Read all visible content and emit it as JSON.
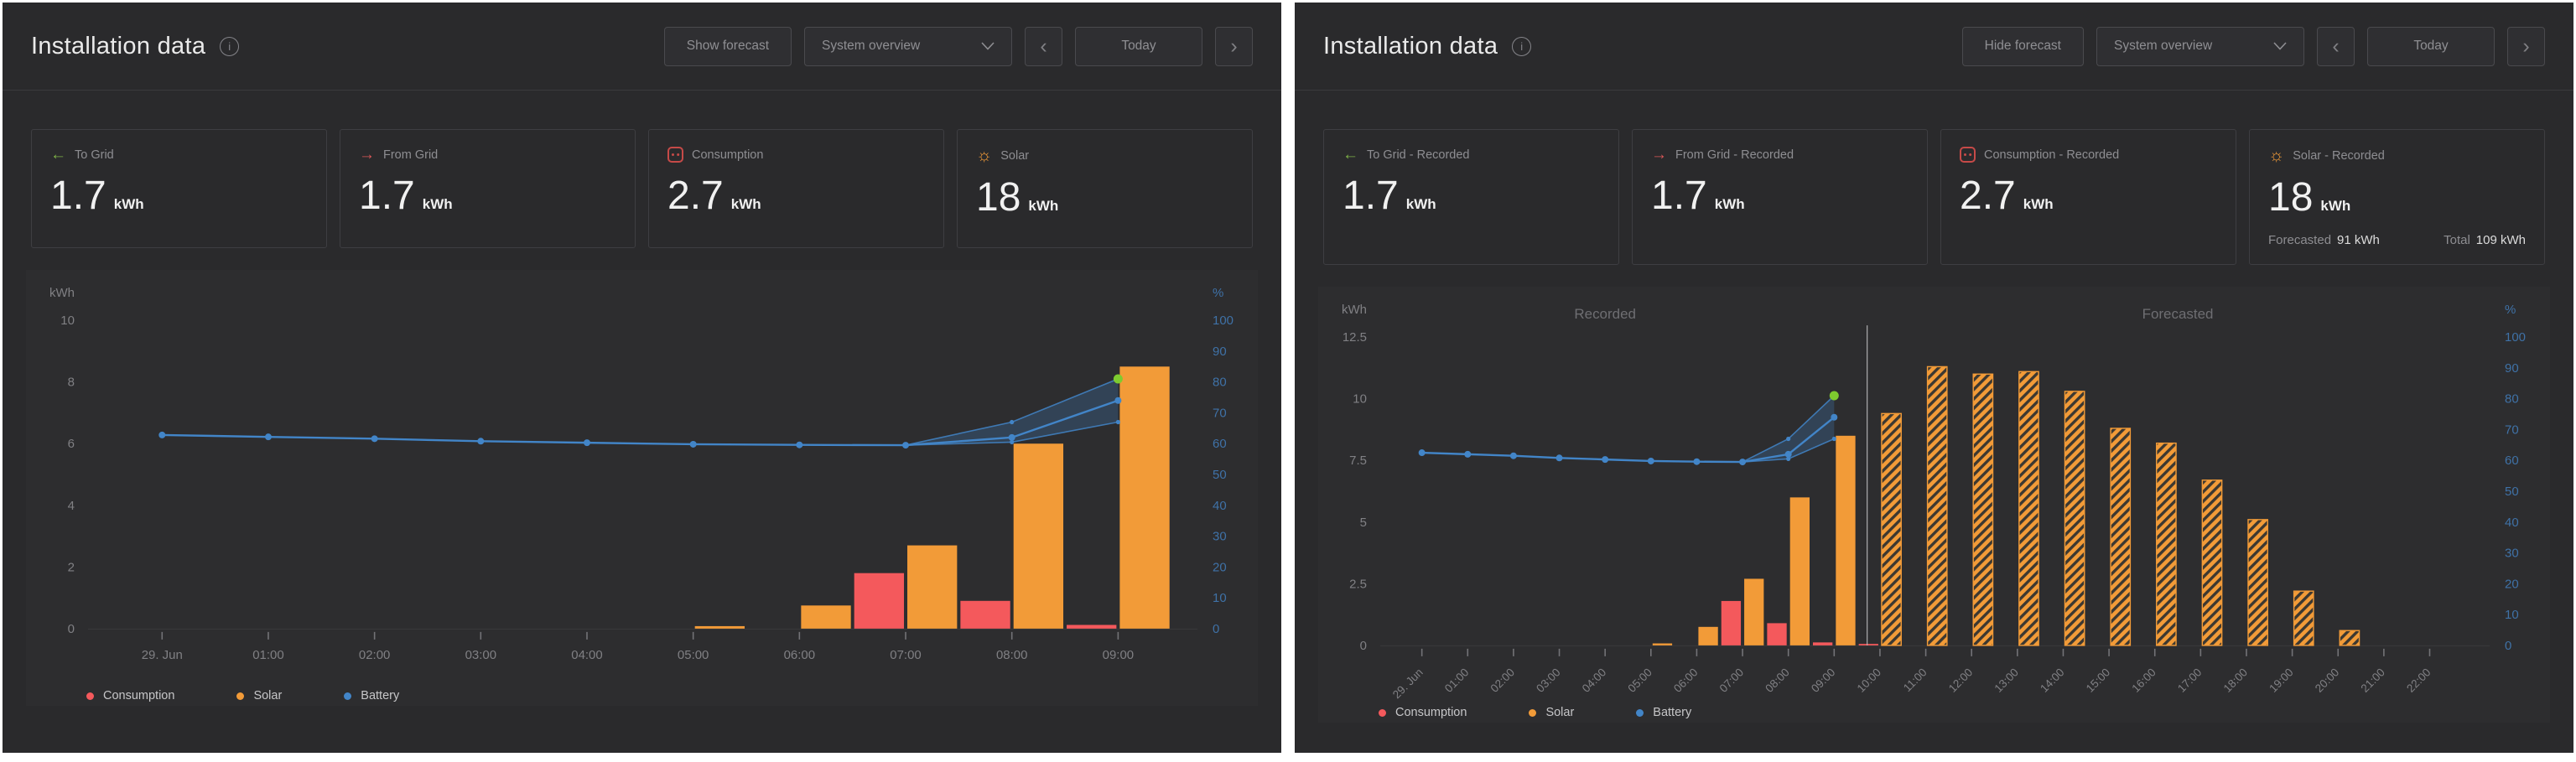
{
  "colors": {
    "solar": "#f29b38",
    "consumption": "#f4595c",
    "battery": "#4285c8",
    "green": "#7ecb2f",
    "to_grid_icon_green": "#7fb347",
    "from_grid_icon_red": "#d95757",
    "socket_icon_red": "#c64a48",
    "right_axis_blue": "#3f72a8"
  },
  "panels": [
    {
      "header": {
        "title": "Installation data",
        "forecast_button": "Show forecast",
        "view_select": "System overview",
        "today_button": "Today"
      },
      "cards": [
        {
          "icon": "arrow-left-icon",
          "label": "To Grid",
          "value": "1.7",
          "unit": "kWh"
        },
        {
          "icon": "arrow-right-icon",
          "label": "From Grid",
          "value": "1.7",
          "unit": "kWh"
        },
        {
          "icon": "socket-icon",
          "label": "Consumption",
          "value": "2.7",
          "unit": "kWh"
        },
        {
          "icon": "sun-icon",
          "label": "Solar",
          "value": "18",
          "unit": "kWh"
        }
      ],
      "legend": {
        "consumption": "Consumption",
        "solar": "Solar",
        "battery": "Battery"
      }
    },
    {
      "header": {
        "title": "Installation data",
        "forecast_button": "Hide forecast",
        "view_select": "System overview",
        "today_button": "Today"
      },
      "cards": [
        {
          "icon": "arrow-left-icon",
          "label": "To Grid - Recorded",
          "value": "1.7",
          "unit": "kWh"
        },
        {
          "icon": "arrow-right-icon",
          "label": "From Grid - Recorded",
          "value": "1.7",
          "unit": "kWh"
        },
        {
          "icon": "socket-icon",
          "label": "Consumption - Recorded",
          "value": "2.7",
          "unit": "kWh"
        },
        {
          "icon": "sun-icon",
          "label": "Solar - Recorded",
          "value": "18",
          "unit": "kWh",
          "footer": {
            "forecast_label": "Forecasted",
            "forecast_value": "91 kWh",
            "total_label": "Total",
            "total_value": "109 kWh"
          }
        }
      ],
      "legend": {
        "consumption": "Consumption",
        "solar": "Solar",
        "battery": "Battery"
      }
    }
  ],
  "chart_data": [
    {
      "type": "bar+line",
      "title": "",
      "y_left": {
        "label": "kWh",
        "ticks": [
          0,
          2,
          4,
          6,
          8,
          10
        ],
        "max": 10
      },
      "y_right": {
        "label": "%",
        "ticks": [
          0,
          10,
          20,
          30,
          40,
          50,
          60,
          70,
          80,
          90,
          100
        ],
        "max": 100
      },
      "x": {
        "min": -0.65,
        "max": 9.7,
        "rotate": false,
        "ticks": [
          {
            "t": 0,
            "label": "29. Jun"
          },
          {
            "t": 1,
            "label": "01:00"
          },
          {
            "t": 2,
            "label": "02:00"
          },
          {
            "t": 3,
            "label": "03:00"
          },
          {
            "t": 4,
            "label": "04:00"
          },
          {
            "t": 5,
            "label": "05:00"
          },
          {
            "t": 6,
            "label": "06:00"
          },
          {
            "t": 7,
            "label": "07:00"
          },
          {
            "t": 8,
            "label": "08:00"
          },
          {
            "t": 9,
            "label": "09:00"
          }
        ]
      },
      "slot_hours": 0.5,
      "series": {
        "solar_recorded": [
          {
            "t": 5,
            "v": 0.08
          },
          {
            "t": 6,
            "v": 0.75
          },
          {
            "t": 7,
            "v": 2.7
          },
          {
            "t": 8,
            "v": 6.0
          },
          {
            "t": 9,
            "v": 8.5
          }
        ],
        "consumption_recorded": [
          {
            "t": 6.5,
            "v": 1.8
          },
          {
            "t": 7.5,
            "v": 0.9
          },
          {
            "t": 8.5,
            "v": 0.12
          }
        ],
        "solar_forecast": [],
        "battery_pct": [
          {
            "t": 0,
            "v": 62.8
          },
          {
            "t": 1,
            "v": 62.2
          },
          {
            "t": 2,
            "v": 61.6
          },
          {
            "t": 3,
            "v": 60.8
          },
          {
            "t": 4,
            "v": 60.3
          },
          {
            "t": 5,
            "v": 59.8
          },
          {
            "t": 6,
            "v": 59.6
          },
          {
            "t": 7,
            "v": 59.5
          },
          {
            "t": 8,
            "v": 62
          },
          {
            "t": 9,
            "v": 74
          }
        ],
        "battery_band_upper": [
          {
            "t": 7,
            "v": 59.5
          },
          {
            "t": 8,
            "v": 67
          },
          {
            "t": 9,
            "v": 81
          }
        ],
        "battery_band_lower": [
          {
            "t": 7,
            "v": 59.5
          },
          {
            "t": 8,
            "v": 60.5
          },
          {
            "t": 9,
            "v": 67
          }
        ],
        "battery_forecast_dot": {
          "t": 9,
          "v": 81
        }
      }
    },
    {
      "type": "bar+line",
      "title": "",
      "y_left": {
        "label": "kWh",
        "ticks": [
          0,
          2.5,
          5,
          7.5,
          10,
          12.5
        ],
        "max": 12.5
      },
      "y_right": {
        "label": "%",
        "ticks": [
          0,
          10,
          20,
          30,
          40,
          50,
          60,
          70,
          80,
          90,
          100
        ],
        "max": 100
      },
      "x": {
        "min": -0.8,
        "max": 23.2,
        "rotate": true,
        "ticks": [
          {
            "t": 0,
            "label": "29. Jun"
          },
          {
            "t": 1,
            "label": "01:00"
          },
          {
            "t": 2,
            "label": "02:00"
          },
          {
            "t": 3,
            "label": "03:00"
          },
          {
            "t": 4,
            "label": "04:00"
          },
          {
            "t": 5,
            "label": "05:00"
          },
          {
            "t": 6,
            "label": "06:00"
          },
          {
            "t": 7,
            "label": "07:00"
          },
          {
            "t": 8,
            "label": "08:00"
          },
          {
            "t": 9,
            "label": "09:00"
          },
          {
            "t": 10,
            "label": "10:00"
          },
          {
            "t": 11,
            "label": "11:00"
          },
          {
            "t": 12,
            "label": "12:00"
          },
          {
            "t": 13,
            "label": "13:00"
          },
          {
            "t": 14,
            "label": "14:00"
          },
          {
            "t": 15,
            "label": "15:00"
          },
          {
            "t": 16,
            "label": "16:00"
          },
          {
            "t": 17,
            "label": "17:00"
          },
          {
            "t": 18,
            "label": "18:00"
          },
          {
            "t": 19,
            "label": "19:00"
          },
          {
            "t": 20,
            "label": "20:00"
          },
          {
            "t": 21,
            "label": "21:00"
          },
          {
            "t": 22,
            "label": "22:00"
          }
        ]
      },
      "slot_hours": 0.5,
      "divider_t": 9.72,
      "region_labels": [
        {
          "t": 4,
          "label": "Recorded"
        },
        {
          "t": 16.5,
          "label": "Forecasted"
        }
      ],
      "series": {
        "solar_recorded": [
          {
            "t": 5,
            "v": 0.08
          },
          {
            "t": 6,
            "v": 0.75
          },
          {
            "t": 7,
            "v": 2.7
          },
          {
            "t": 8,
            "v": 6.0
          },
          {
            "t": 9,
            "v": 8.5
          }
        ],
        "consumption_recorded": [
          {
            "t": 6.5,
            "v": 1.8
          },
          {
            "t": 7.5,
            "v": 0.9
          },
          {
            "t": 8.5,
            "v": 0.12
          },
          {
            "t": 9.5,
            "v": 0.06
          }
        ],
        "solar_forecast": [
          {
            "t": 10,
            "v": 9.4
          },
          {
            "t": 11,
            "v": 11.3
          },
          {
            "t": 12,
            "v": 11.0
          },
          {
            "t": 13,
            "v": 11.1
          },
          {
            "t": 14,
            "v": 10.3
          },
          {
            "t": 15,
            "v": 8.8
          },
          {
            "t": 16,
            "v": 8.2
          },
          {
            "t": 17,
            "v": 6.7
          },
          {
            "t": 18,
            "v": 5.1
          },
          {
            "t": 19,
            "v": 2.2
          },
          {
            "t": 20,
            "v": 0.6
          }
        ],
        "battery_pct": [
          {
            "t": 0,
            "v": 62.5
          },
          {
            "t": 1,
            "v": 62
          },
          {
            "t": 2,
            "v": 61.5
          },
          {
            "t": 3,
            "v": 60.8
          },
          {
            "t": 4,
            "v": 60.3
          },
          {
            "t": 5,
            "v": 59.8
          },
          {
            "t": 6,
            "v": 59.6
          },
          {
            "t": 7,
            "v": 59.5
          },
          {
            "t": 8,
            "v": 62
          },
          {
            "t": 9,
            "v": 74
          }
        ],
        "battery_band_upper": [
          {
            "t": 7,
            "v": 59.5
          },
          {
            "t": 8,
            "v": 67
          },
          {
            "t": 9,
            "v": 81
          }
        ],
        "battery_band_lower": [
          {
            "t": 7,
            "v": 59.5
          },
          {
            "t": 8,
            "v": 60.5
          },
          {
            "t": 9,
            "v": 67
          }
        ],
        "battery_forecast_dot": {
          "t": 9,
          "v": 81
        }
      }
    }
  ]
}
